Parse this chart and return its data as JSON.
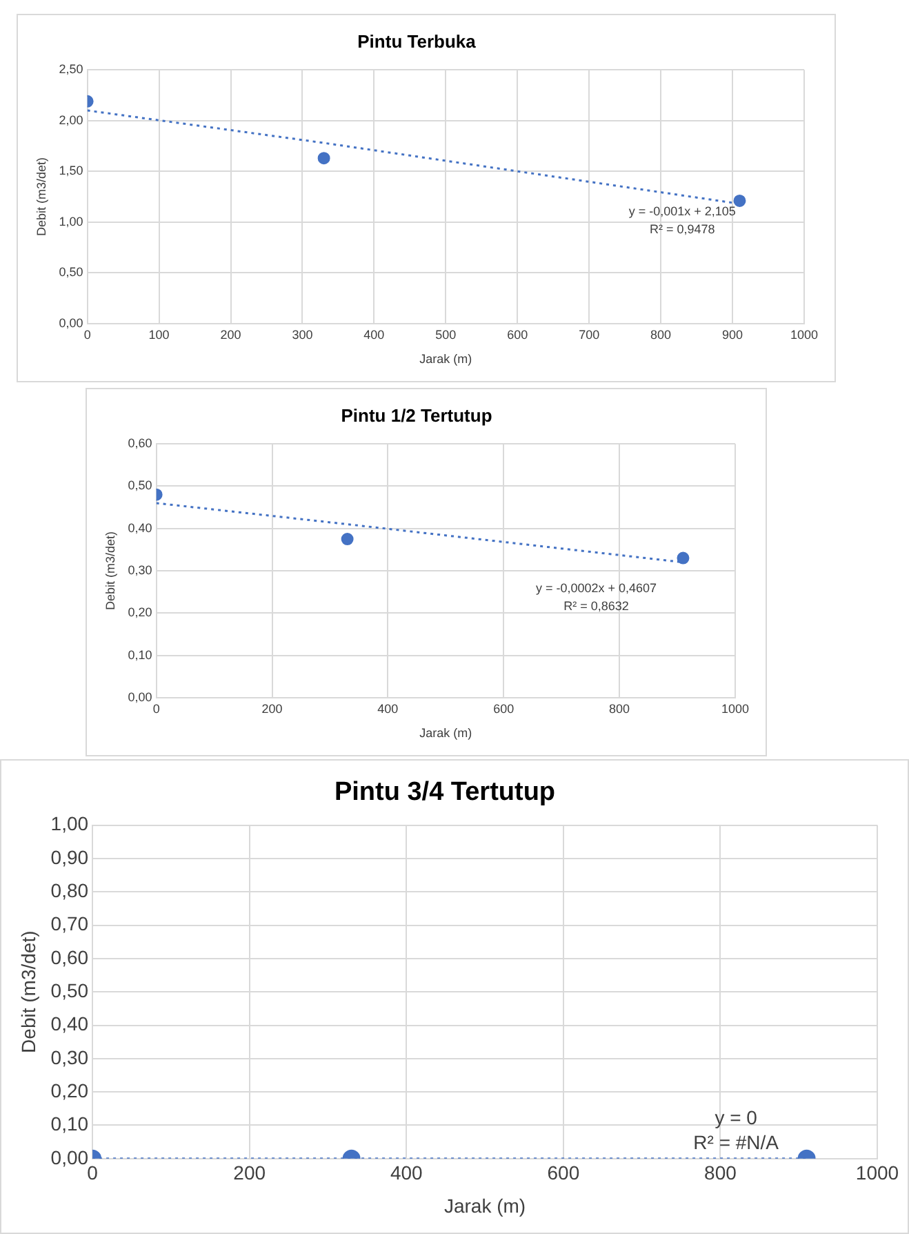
{
  "chart_data": [
    {
      "type": "scatter",
      "title": "Pintu Terbuka",
      "xlabel": "Jarak (m)",
      "ylabel": "Debit (m3/det)",
      "x": [
        0,
        330,
        910
      ],
      "xlim": [
        0,
        1000
      ],
      "xticks": [
        0,
        100,
        200,
        300,
        400,
        500,
        600,
        700,
        800,
        900,
        1000
      ],
      "ylim": [
        0,
        2.5
      ],
      "yticks": [
        {
          "value": 0,
          "label": "0,00"
        },
        {
          "value": 0.5,
          "label": "0,50"
        },
        {
          "value": 1,
          "label": "1,00"
        },
        {
          "value": 1.5,
          "label": "1,50"
        },
        {
          "value": 2,
          "label": "2,00"
        },
        {
          "value": 2.5,
          "label": "2,50"
        }
      ],
      "grid": true,
      "legend": false,
      "marker": "circle",
      "series": [
        {
          "type": "scatter",
          "color": "#4472c4",
          "values": [
            2.19,
            1.63,
            1.21
          ]
        },
        {
          "type": "line",
          "color": "#4472c4",
          "values": [
            2.1,
            1.78,
            1.18
          ],
          "line_style": "dotted",
          "marker": "none"
        }
      ],
      "annotations": [
        "y = -0,001x + 2,105",
        "R² = 0,9478"
      ]
    },
    {
      "type": "scatter",
      "title": "Pintu 1/2 Tertutup",
      "xlabel": "Jarak (m)",
      "ylabel": "Debit (m3/det)",
      "x": [
        0,
        330,
        910
      ],
      "xlim": [
        0,
        1000
      ],
      "xticks": [
        0,
        200,
        400,
        600,
        800,
        1000
      ],
      "ylim": [
        0,
        0.6
      ],
      "yticks": [
        {
          "value": 0,
          "label": "0,00"
        },
        {
          "value": 0.1,
          "label": "0,10"
        },
        {
          "value": 0.2,
          "label": "0,20"
        },
        {
          "value": 0.3,
          "label": "0,30"
        },
        {
          "value": 0.4,
          "label": "0,40"
        },
        {
          "value": 0.5,
          "label": "0,50"
        },
        {
          "value": 0.6,
          "label": "0,60"
        }
      ],
      "grid": true,
      "legend": false,
      "marker": "circle",
      "series": [
        {
          "type": "scatter",
          "color": "#4472c4",
          "values": [
            0.48,
            0.375,
            0.33
          ]
        },
        {
          "type": "line",
          "color": "#4472c4",
          "values": [
            0.46,
            0.41,
            0.32
          ],
          "line_style": "dotted",
          "marker": "none"
        }
      ],
      "annotations": [
        "y = -0,0002x + 0,4607",
        "R² = 0,8632"
      ]
    },
    {
      "type": "scatter",
      "title": "Pintu 3/4 Tertutup",
      "xlabel": "Jarak (m)",
      "ylabel": "Debit (m3/det)",
      "x": [
        0,
        330,
        910
      ],
      "xlim": [
        0,
        1000
      ],
      "xticks": [
        0,
        200,
        400,
        600,
        800,
        1000
      ],
      "ylim": [
        0,
        1
      ],
      "yticks": [
        {
          "value": 0,
          "label": "0,00"
        },
        {
          "value": 0.1,
          "label": "0,10"
        },
        {
          "value": 0.2,
          "label": "0,20"
        },
        {
          "value": 0.3,
          "label": "0,30"
        },
        {
          "value": 0.4,
          "label": "0,40"
        },
        {
          "value": 0.5,
          "label": "0,50"
        },
        {
          "value": 0.6,
          "label": "0,60"
        },
        {
          "value": 0.7,
          "label": "0,70"
        },
        {
          "value": 0.8,
          "label": "0,80"
        },
        {
          "value": 0.9,
          "label": "0,90"
        },
        {
          "value": 1,
          "label": "1,00"
        }
      ],
      "grid": true,
      "legend": false,
      "marker": "circle",
      "series": [
        {
          "type": "scatter",
          "color": "#4472c4",
          "values": [
            0,
            0,
            0
          ]
        },
        {
          "type": "line",
          "color": "#4472c4",
          "values": [
            0,
            0,
            0
          ],
          "line_style": "dotted",
          "marker": "none"
        }
      ],
      "annotations": [
        "y = 0",
        "R² = #N/A"
      ]
    }
  ]
}
